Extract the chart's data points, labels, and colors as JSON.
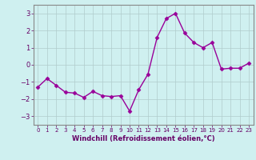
{
  "x": [
    0,
    1,
    2,
    3,
    4,
    5,
    6,
    7,
    8,
    9,
    10,
    11,
    12,
    13,
    14,
    15,
    16,
    17,
    18,
    19,
    20,
    21,
    22,
    23
  ],
  "y": [
    -1.3,
    -0.8,
    -1.2,
    -1.6,
    -1.65,
    -1.9,
    -1.55,
    -1.8,
    -1.85,
    -1.8,
    -2.7,
    -1.45,
    -0.55,
    1.6,
    2.7,
    3.0,
    1.85,
    1.3,
    1.0,
    1.3,
    -0.25,
    -0.2,
    -0.2,
    0.1
  ],
  "line_color": "#990099",
  "marker": "D",
  "marker_size": 2.5,
  "bg_color": "#cff0f0",
  "grid_color": "#b0cccc",
  "xlabel": "Windchill (Refroidissement éolien,°C)",
  "xlabel_color": "#660066",
  "tick_color": "#660066",
  "ylim": [
    -3.5,
    3.5
  ],
  "xlim": [
    -0.5,
    23.5
  ],
  "yticks": [
    -3,
    -2,
    -1,
    0,
    1,
    2,
    3
  ],
  "xticks": [
    0,
    1,
    2,
    3,
    4,
    5,
    6,
    7,
    8,
    9,
    10,
    11,
    12,
    13,
    14,
    15,
    16,
    17,
    18,
    19,
    20,
    21,
    22,
    23
  ],
  "spine_color": "#888888",
  "linewidth": 1.0
}
